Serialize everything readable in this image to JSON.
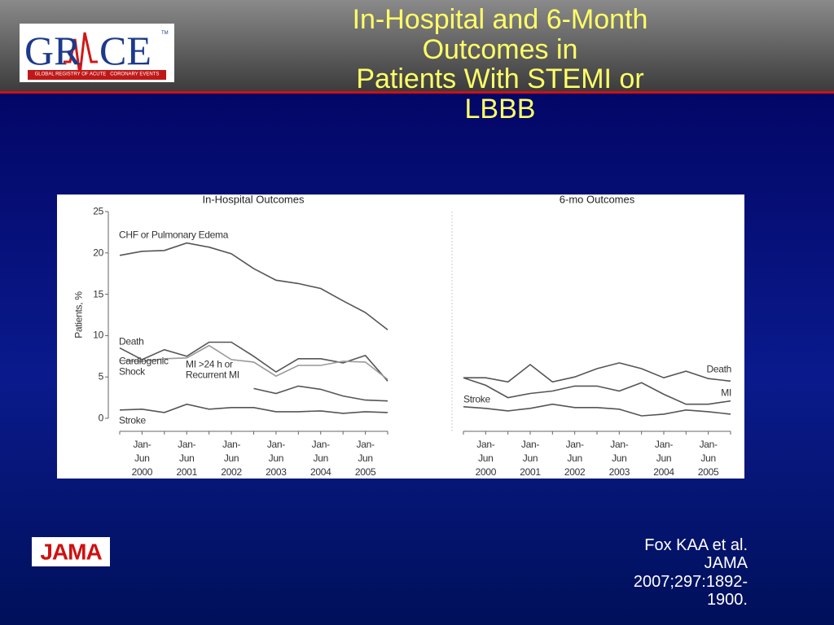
{
  "slide": {
    "title": "In-Hospital and 6-Month Outcomes in\nPatients With STEMI or LBBB",
    "logo": {
      "left": "GR",
      "right": "CE",
      "mark": "TM",
      "tagline": "GLOBAL REGISTRY OF ACUTE   CORONARY EVENTS"
    },
    "jama": "JAMA",
    "citation": "Fox KAA et al. JAMA 2007;297:1892-1900."
  },
  "chart_data": [
    {
      "type": "line",
      "title": "In-Hospital Outcomes",
      "ylabel": "Patients, %",
      "categories": [
        null,
        "Jan-\nJun\n2000",
        null,
        "Jan-\nJun\n2001",
        null,
        "Jan-\nJun\n2002",
        null,
        "Jan-\nJun\n2003",
        null,
        "Jan-\nJun\n2004",
        null,
        "Jan-\nJun\n2005",
        null
      ],
      "ylim": [
        0,
        25
      ],
      "yticks": [
        0,
        5,
        10,
        15,
        20,
        25
      ],
      "series": [
        {
          "name": "CHF or Pulmonary Edema",
          "color": "#555555",
          "values": [
            19.7,
            20.2,
            20.3,
            21.2,
            20.7,
            19.9,
            18.1,
            16.7,
            16.3,
            15.7,
            14.2,
            12.8,
            10.7
          ]
        },
        {
          "name": "Death",
          "color": "#555555",
          "values": [
            8.5,
            7.1,
            8.3,
            7.5,
            9.2,
            9.2,
            7.5,
            5.6,
            7.2,
            7.2,
            6.7,
            7.6,
            4.5
          ]
        },
        {
          "name": "Cardiogenic\nShock",
          "color": "#999999",
          "values": [
            7.0,
            6.9,
            7.2,
            7.3,
            8.8,
            7.1,
            6.8,
            5.1,
            6.4,
            6.4,
            6.9,
            6.8,
            4.7
          ]
        },
        {
          "name": "MI >24 h or\nRecurrent MI",
          "color": "#555555",
          "values": [
            null,
            null,
            null,
            null,
            null,
            null,
            3.6,
            3.0,
            3.9,
            3.5,
            2.7,
            2.2,
            2.1
          ]
        },
        {
          "name": "Stroke",
          "color": "#555555",
          "values": [
            1.0,
            1.1,
            0.7,
            1.7,
            1.1,
            1.3,
            1.3,
            0.8,
            0.8,
            0.9,
            0.6,
            0.8,
            0.7
          ]
        }
      ]
    },
    {
      "type": "line",
      "title": "6-mo Outcomes",
      "categories": [
        null,
        "Jan-\nJun\n2000",
        null,
        "Jan-\nJun\n2001",
        null,
        "Jan-\nJun\n2002",
        null,
        "Jan-\nJun\n2003",
        null,
        "Jan-\nJun\n2004",
        null,
        "Jan-\nJun\n2005",
        null
      ],
      "ylim": [
        0,
        25
      ],
      "series": [
        {
          "name": "Death",
          "color": "#555555",
          "values": [
            4.9,
            4.9,
            4.4,
            6.5,
            4.4,
            5.0,
            6.0,
            6.7,
            6.0,
            4.9,
            5.7,
            4.8,
            4.5
          ]
        },
        {
          "name": "MI",
          "color": "#555555",
          "values": [
            4.9,
            4.0,
            2.5,
            3.0,
            3.3,
            3.9,
            3.9,
            3.3,
            4.3,
            2.9,
            1.7,
            1.7,
            2.1
          ]
        },
        {
          "name": "Stroke",
          "color": "#555555",
          "values": [
            1.4,
            1.2,
            0.9,
            1.2,
            1.7,
            1.3,
            1.3,
            1.1,
            0.3,
            0.5,
            1.0,
            0.8,
            0.5
          ]
        }
      ]
    }
  ]
}
